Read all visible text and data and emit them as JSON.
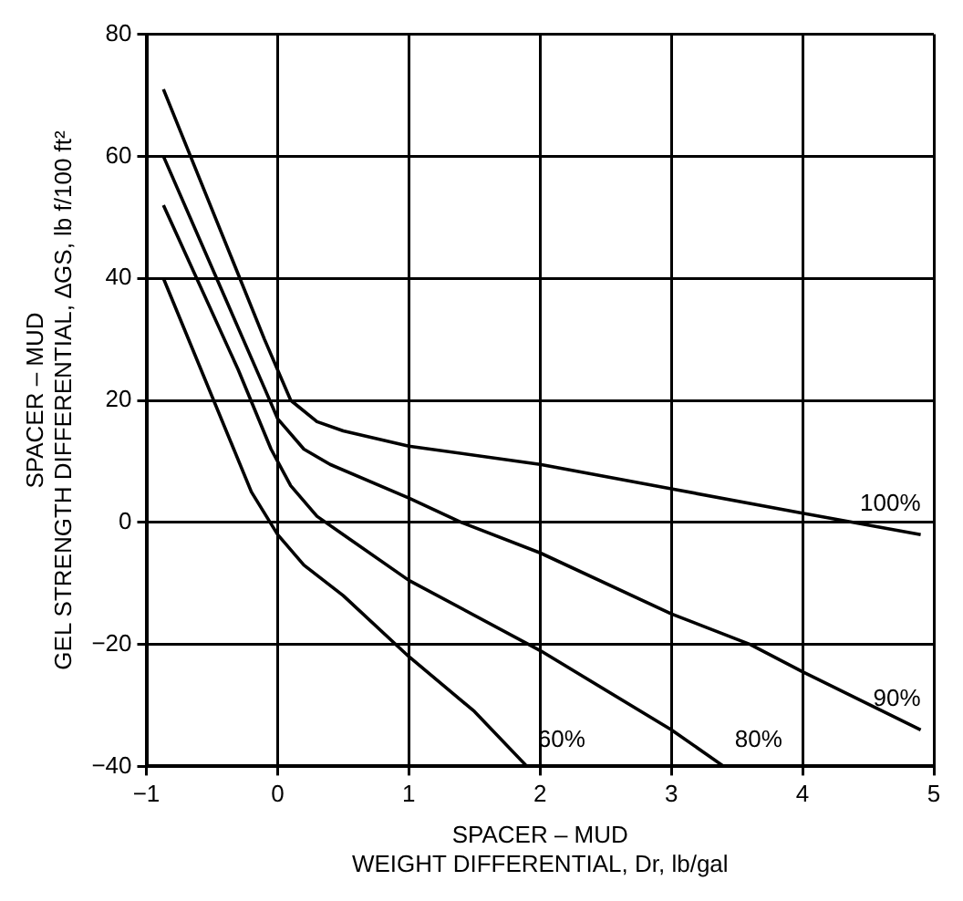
{
  "chart_data": {
    "type": "line",
    "xlabel": "SPACER – MUD\nWEIGHT DIFFERENTIAL, Dr, lb/gal",
    "ylabel": "SPACER – MUD\nGEL STRENGTH DIFFERENTIAL, ∆GS, lb f/100 ft²",
    "xlim": [
      -1,
      5
    ],
    "xticks": [
      -1,
      0,
      1,
      2,
      3,
      4,
      5
    ],
    "ylim": [
      -40,
      80
    ],
    "yticks": [
      -40,
      -20,
      0,
      20,
      40,
      60,
      80
    ],
    "grid": true,
    "legend": false,
    "marker": "none",
    "line_style": "solid",
    "series": [
      {
        "name": "100%",
        "color": "#000000",
        "x": [
          -0.87,
          -0.1,
          0.1,
          0.3,
          0.5,
          1,
          2,
          3,
          4,
          4.9
        ],
        "values": [
          71,
          30,
          20,
          16.5,
          15,
          12.5,
          9.5,
          5.5,
          1.5,
          -2
        ]
      },
      {
        "name": "90%",
        "color": "#000000",
        "x": [
          -0.87,
          -0.1,
          0,
          0.2,
          0.4,
          1,
          1.4,
          2,
          3,
          3.6,
          4,
          4.9
        ],
        "values": [
          60,
          22,
          17,
          12,
          9.5,
          4,
          0,
          -5,
          -15,
          -20,
          -24.5,
          -34
        ]
      },
      {
        "name": "80%",
        "color": "#000000",
        "x": [
          -0.87,
          -0.3,
          -0.05,
          0.1,
          0.3,
          0.5,
          1,
          2,
          3,
          3.4
        ],
        "values": [
          52,
          25,
          12,
          6,
          1,
          -2,
          -9.5,
          -21,
          -34,
          -40
        ]
      },
      {
        "name": "60%",
        "color": "#000000",
        "x": [
          -0.87,
          -0.2,
          0,
          0.2,
          0.5,
          1,
          1.5,
          1.9
        ],
        "values": [
          40,
          5,
          -2,
          -7,
          -12,
          -22,
          -31,
          -40
        ]
      }
    ]
  }
}
